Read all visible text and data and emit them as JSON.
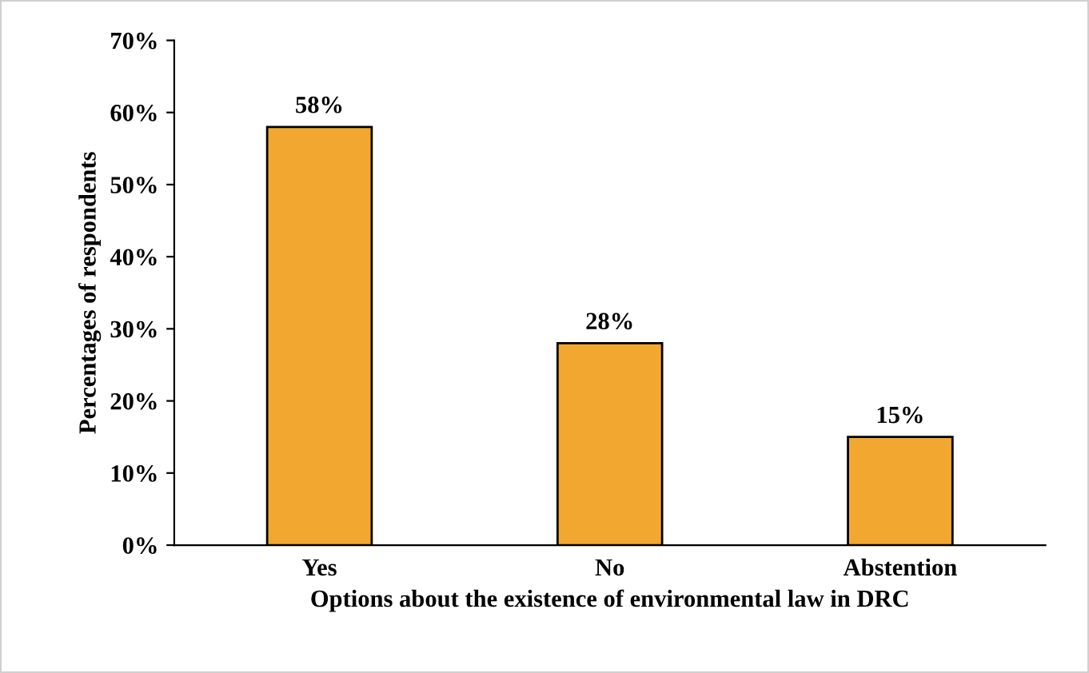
{
  "chart_data": {
    "type": "bar",
    "xlabel": "Options about the existence of environmental law in DRC",
    "ylabel": "Percentages of respondents",
    "categories": [
      "Yes",
      "No",
      "Abstention"
    ],
    "values": [
      58,
      28,
      15
    ],
    "value_labels": [
      "58%",
      "28%",
      "15%"
    ],
    "color": "#f2a830",
    "ylim": [
      0,
      70
    ],
    "yticks": [
      {
        "value": 0,
        "label": "0%"
      },
      {
        "value": 10,
        "label": "10%"
      },
      {
        "value": 20,
        "label": "20%"
      },
      {
        "value": 30,
        "label": "30%"
      },
      {
        "value": 40,
        "label": "40%"
      },
      {
        "value": 50,
        "label": "50%"
      },
      {
        "value": 60,
        "label": "60%"
      },
      {
        "value": 70,
        "label": "70%"
      }
    ],
    "grid": false
  }
}
